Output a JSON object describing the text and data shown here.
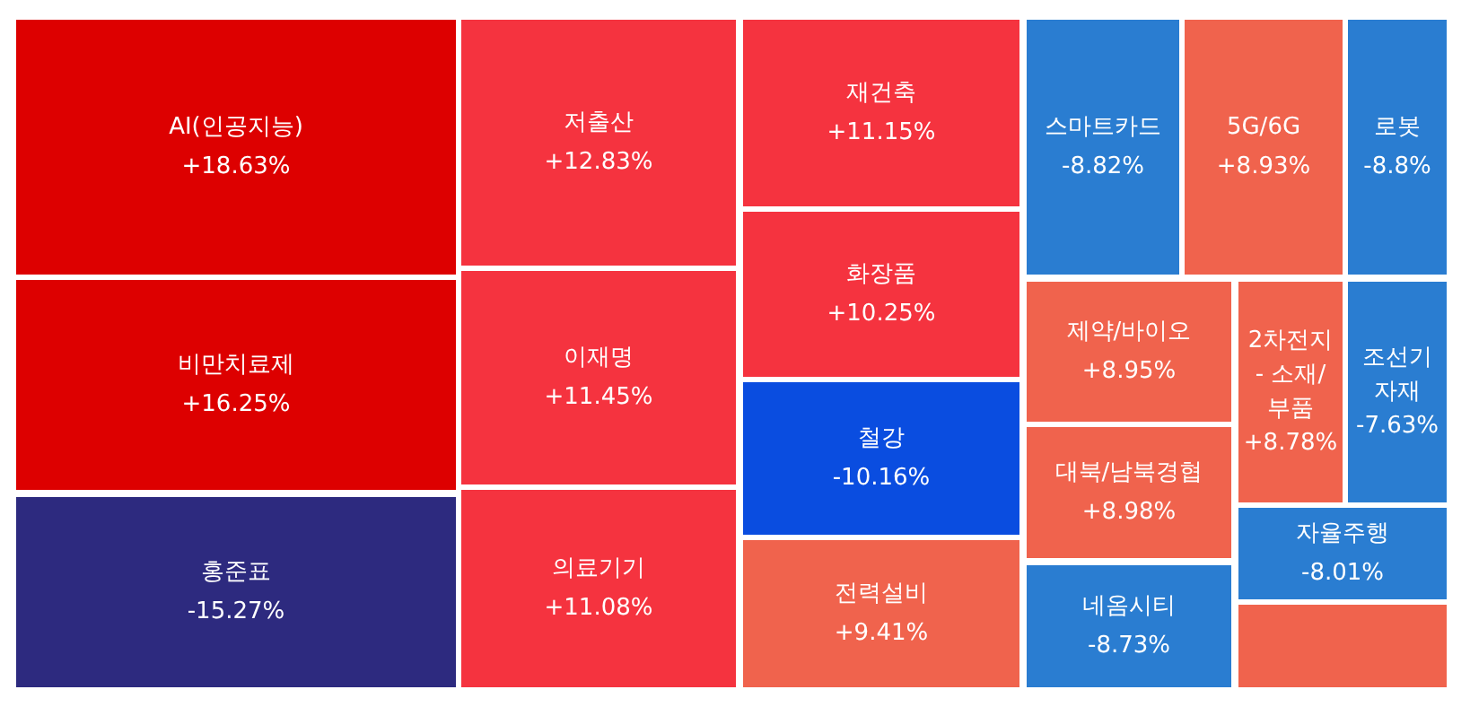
{
  "chart_data": {
    "type": "other",
    "categories": [
      "AI(인공지능)",
      "비만치료제",
      "홍준표",
      "저출산",
      "이재명",
      "의료기기",
      "재건축",
      "화장품",
      "철강",
      "전력설비",
      "스마트카드",
      "5G/6G",
      "로봇",
      "제약/바이오",
      "2차전지\n- 소재/\n부품",
      "조선기\n자재",
      "대북/남북경협",
      "네옴시티",
      "자율주행",
      null
    ],
    "values": [
      18.63,
      16.25,
      -15.27,
      12.83,
      11.45,
      11.08,
      11.15,
      10.25,
      -10.16,
      9.41,
      -8.82,
      8.93,
      -8.8,
      8.95,
      8.78,
      -7.63,
      8.98,
      -8.73,
      -8.01,
      null
    ],
    "value_labels": [
      "+18.63%",
      "+16.25%",
      "-15.27%",
      "+12.83%",
      "+11.45%",
      "+11.08%",
      "+11.15%",
      "+10.25%",
      "-10.16%",
      "+9.41%",
      "-8.82%",
      "+8.93%",
      "-8.8%",
      "+8.95%",
      "+8.78%",
      "-7.63%",
      "+8.98%",
      "-8.73%",
      "-8.01%",
      null
    ],
    "colors": [
      "#dd0000",
      "#dd0000",
      "#2d2a7f",
      "#f5333f",
      "#f5333f",
      "#f5333f",
      "#f5333f",
      "#f5333f",
      "#0a4de0",
      "#f0634d",
      "#2a7dd1",
      "#f0634d",
      "#2a7dd1",
      "#f0634d",
      "#f0634d",
      "#2a7dd1",
      "#f0634d",
      "#2a7dd1",
      "#2a7dd1",
      "#f0634d"
    ]
  }
}
